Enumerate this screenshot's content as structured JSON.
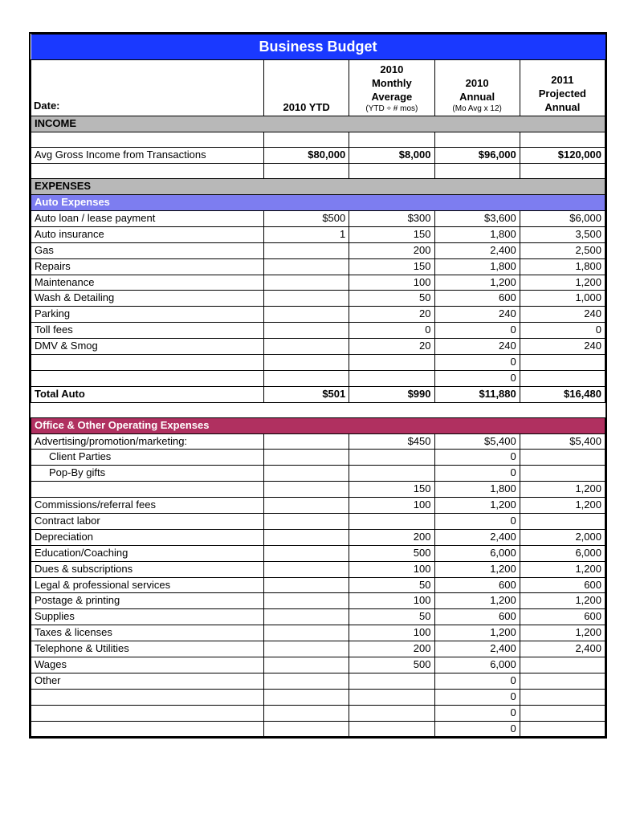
{
  "title": "Business Budget",
  "colors": {
    "title_bg": "#1a39ff",
    "section_gray": "#b8b8b8",
    "section_blue": "#7d7df0",
    "section_magenta": "#b03060",
    "border": "#000000",
    "text": "#000000",
    "text_on_color": "#ffffff"
  },
  "headers": {
    "date": "Date:",
    "c1": "2010 YTD",
    "c2_line1": "2010",
    "c2_line2": "Monthly",
    "c2_line3": "Average",
    "c2_sub": "(YTD ÷ # mos)",
    "c3_line1": "2010",
    "c3_line2": "Annual",
    "c3_sub": "(Mo Avg x 12)",
    "c4_line1": "2011",
    "c4_line2": "Projected",
    "c4_line3": "Annual"
  },
  "income": {
    "heading": "INCOME",
    "row_label": "Avg Gross Income from Transactions",
    "v1": "$80,000",
    "v2": "$8,000",
    "v3": "$96,000",
    "v4": "$120,000"
  },
  "expenses": {
    "heading": "EXPENSES"
  },
  "auto": {
    "heading": "Auto Expenses",
    "rows": [
      {
        "label": "Auto loan / lease payment",
        "v1": "$500",
        "v2": "$300",
        "v3": "$3,600",
        "v4": "$6,000"
      },
      {
        "label": "Auto insurance",
        "v1": "1",
        "v2": "150",
        "v3": "1,800",
        "v4": "3,500"
      },
      {
        "label": "Gas",
        "v1": "",
        "v2": "200",
        "v3": "2,400",
        "v4": "2,500"
      },
      {
        "label": "Repairs",
        "v1": "",
        "v2": "150",
        "v3": "1,800",
        "v4": "1,800"
      },
      {
        "label": "Maintenance",
        "v1": "",
        "v2": "100",
        "v3": "1,200",
        "v4": "1,200"
      },
      {
        "label": "Wash & Detailing",
        "v1": "",
        "v2": "50",
        "v3": "600",
        "v4": "1,000"
      },
      {
        "label": "Parking",
        "v1": "",
        "v2": "20",
        "v3": "240",
        "v4": "240"
      },
      {
        "label": "Toll fees",
        "v1": "",
        "v2": "0",
        "v3": "0",
        "v4": "0"
      },
      {
        "label": "DMV & Smog",
        "v1": "",
        "v2": "20",
        "v3": "240",
        "v4": "240"
      },
      {
        "label": "",
        "v1": "",
        "v2": "",
        "v3": "0",
        "v4": ""
      },
      {
        "label": "",
        "v1": "",
        "v2": "",
        "v3": "0",
        "v4": ""
      }
    ],
    "total": {
      "label": "Total Auto",
      "v1": "$501",
      "v2": "$990",
      "v3": "$11,880",
      "v4": "$16,480"
    }
  },
  "office": {
    "heading": "Office & Other Operating Expenses",
    "rows": [
      {
        "label": "Advertising/promotion/marketing:",
        "v1": "",
        "v2": "$450",
        "v3": "$5,400",
        "v4": "$5,400",
        "indent": false
      },
      {
        "label": "Client Parties",
        "v1": "",
        "v2": "",
        "v3": "0",
        "v4": "",
        "indent": true
      },
      {
        "label": "Pop-By gifts",
        "v1": "",
        "v2": "",
        "v3": "0",
        "v4": "",
        "indent": true
      },
      {
        "label": "",
        "v1": "",
        "v2": "150",
        "v3": "1,800",
        "v4": "1,200",
        "indent": false
      },
      {
        "label": "Commissions/referral fees",
        "v1": "",
        "v2": "100",
        "v3": "1,200",
        "v4": "1,200",
        "indent": false
      },
      {
        "label": "Contract labor",
        "v1": "",
        "v2": "",
        "v3": "0",
        "v4": "",
        "indent": false
      },
      {
        "label": "Depreciation",
        "v1": "",
        "v2": "200",
        "v3": "2,400",
        "v4": "2,000",
        "indent": false
      },
      {
        "label": "Education/Coaching",
        "v1": "",
        "v2": "500",
        "v3": "6,000",
        "v4": "6,000",
        "indent": false
      },
      {
        "label": "Dues & subscriptions",
        "v1": "",
        "v2": "100",
        "v3": "1,200",
        "v4": "1,200",
        "indent": false
      },
      {
        "label": "Legal & professional services",
        "v1": "",
        "v2": "50",
        "v3": "600",
        "v4": "600",
        "indent": false
      },
      {
        "label": "Postage & printing",
        "v1": "",
        "v2": "100",
        "v3": "1,200",
        "v4": "1,200",
        "indent": false
      },
      {
        "label": "Supplies",
        "v1": "",
        "v2": "50",
        "v3": "600",
        "v4": "600",
        "indent": false
      },
      {
        "label": "Taxes & licenses",
        "v1": "",
        "v2": "100",
        "v3": "1,200",
        "v4": "1,200",
        "indent": false
      },
      {
        "label": "Telephone & Utilities",
        "v1": "",
        "v2": "200",
        "v3": "2,400",
        "v4": "2,400",
        "indent": false
      },
      {
        "label": "Wages",
        "v1": "",
        "v2": "500",
        "v3": "6,000",
        "v4": "",
        "indent": false
      },
      {
        "label": "Other",
        "v1": "",
        "v2": "",
        "v3": "0",
        "v4": "",
        "indent": false
      },
      {
        "label": "",
        "v1": "",
        "v2": "",
        "v3": "0",
        "v4": "",
        "indent": false
      },
      {
        "label": "",
        "v1": "",
        "v2": "",
        "v3": "0",
        "v4": "",
        "indent": false
      },
      {
        "label": "",
        "v1": "",
        "v2": "",
        "v3": "0",
        "v4": "",
        "indent": false
      }
    ]
  }
}
